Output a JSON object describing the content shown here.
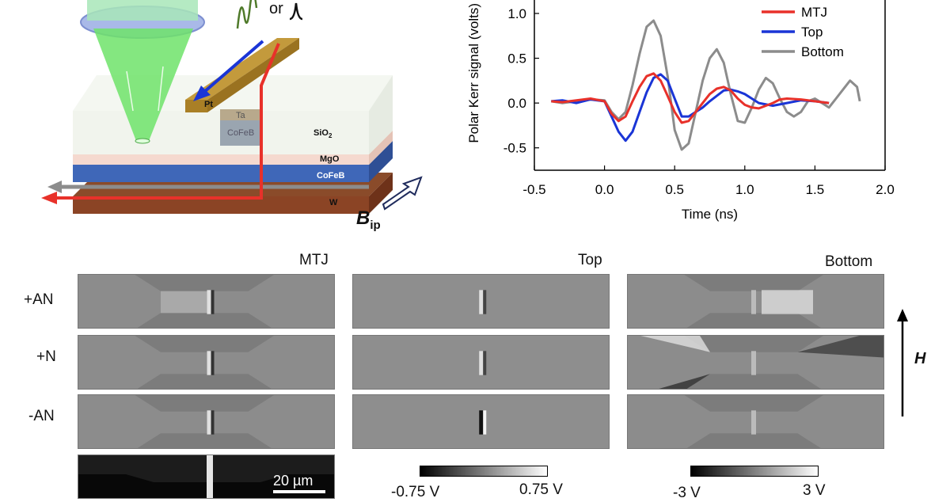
{
  "schematic": {
    "or_label": "or",
    "layers": {
      "pt": "Pt",
      "ta": "Ta",
      "cofeb_pillar": "CoFeB",
      "sio2": "SiO",
      "sio2_sub": "2",
      "mgo": "MgO",
      "cofeb": "CoFeB",
      "w": "W"
    },
    "field_label": "B",
    "field_sub": "ip",
    "colors": {
      "red": "#e8312a",
      "blue": "#1a35d6",
      "gray": "#8c8c8c",
      "green": "#7be37b"
    }
  },
  "chart_data": {
    "type": "line",
    "xlabel": "Time (ns)",
    "ylabel": "Polar Kerr signal (volts)",
    "xlim": [
      -0.5,
      2.0
    ],
    "ylim": [
      -0.75,
      1.15
    ],
    "xticks": [
      -0.5,
      0.0,
      0.5,
      1.0,
      1.5,
      2.0
    ],
    "xtick_labels": [
      "-0.5",
      "0.0",
      "0.5",
      "1.0",
      "1.5",
      "2.0"
    ],
    "yticks": [
      -0.5,
      0.0,
      0.5,
      1.0
    ],
    "ytick_labels": [
      "-0.5",
      "0.0",
      "0.5",
      "1.0"
    ],
    "legend_position": "top-right",
    "series": [
      {
        "name": "MTJ",
        "color": "#e8312a",
        "x": [
          -0.38,
          -0.3,
          -0.2,
          -0.1,
          0.0,
          0.05,
          0.1,
          0.15,
          0.2,
          0.25,
          0.3,
          0.35,
          0.4,
          0.45,
          0.5,
          0.55,
          0.6,
          0.65,
          0.7,
          0.75,
          0.8,
          0.85,
          0.9,
          0.95,
          1.0,
          1.05,
          1.1,
          1.15,
          1.2,
          1.25,
          1.3,
          1.4,
          1.5,
          1.6
        ],
        "y": [
          0.02,
          0.01,
          0.03,
          0.05,
          0.02,
          -0.12,
          -0.2,
          -0.15,
          0.02,
          0.18,
          0.3,
          0.33,
          0.25,
          0.08,
          -0.1,
          -0.22,
          -0.2,
          -0.1,
          0.0,
          0.1,
          0.16,
          0.18,
          0.14,
          0.05,
          -0.02,
          -0.05,
          -0.06,
          -0.03,
          0.0,
          0.04,
          0.05,
          0.04,
          0.02,
          0.0
        ]
      },
      {
        "name": "Top",
        "color": "#1a35d6",
        "x": [
          -0.38,
          -0.3,
          -0.2,
          -0.1,
          0.0,
          0.05,
          0.1,
          0.15,
          0.2,
          0.25,
          0.3,
          0.35,
          0.4,
          0.45,
          0.5,
          0.55,
          0.6,
          0.65,
          0.7,
          0.75,
          0.8,
          0.85,
          0.9,
          0.95,
          1.0,
          1.05,
          1.1,
          1.2,
          1.3,
          1.4,
          1.5,
          1.6
        ],
        "y": [
          0.02,
          0.03,
          0.0,
          0.04,
          0.02,
          -0.15,
          -0.32,
          -0.42,
          -0.32,
          -0.1,
          0.12,
          0.28,
          0.32,
          0.25,
          0.05,
          -0.15,
          -0.15,
          -0.1,
          -0.05,
          0.02,
          0.08,
          0.14,
          0.15,
          0.13,
          0.1,
          0.05,
          0.0,
          -0.03,
          0.0,
          0.03,
          0.02,
          0.0
        ]
      },
      {
        "name": "Bottom",
        "color": "#8c8c8c",
        "x": [
          -0.38,
          -0.3,
          -0.2,
          -0.1,
          0.0,
          0.05,
          0.1,
          0.15,
          0.2,
          0.25,
          0.3,
          0.35,
          0.4,
          0.45,
          0.5,
          0.55,
          0.6,
          0.65,
          0.7,
          0.75,
          0.8,
          0.85,
          0.9,
          0.95,
          1.0,
          1.05,
          1.1,
          1.15,
          1.2,
          1.25,
          1.3,
          1.35,
          1.4,
          1.45,
          1.5,
          1.55,
          1.6,
          1.65,
          1.7,
          1.75,
          1.8,
          1.82
        ],
        "y": [
          0.02,
          0.0,
          0.02,
          0.04,
          0.03,
          -0.1,
          -0.18,
          -0.1,
          0.2,
          0.55,
          0.85,
          0.92,
          0.75,
          0.3,
          -0.3,
          -0.52,
          -0.45,
          -0.1,
          0.25,
          0.5,
          0.6,
          0.45,
          0.1,
          -0.2,
          -0.22,
          -0.05,
          0.15,
          0.28,
          0.22,
          0.05,
          -0.1,
          -0.15,
          -0.1,
          0.02,
          0.05,
          0.0,
          -0.05,
          0.05,
          0.15,
          0.25,
          0.18,
          0.02
        ]
      }
    ]
  },
  "images": {
    "columns": [
      {
        "title": "MTJ"
      },
      {
        "title": "Top"
      },
      {
        "title": "Bottom"
      }
    ],
    "rows": [
      "+AN",
      "+N",
      "-AN"
    ],
    "scalebar": "20 µm",
    "colorbars": [
      {
        "min": "-0.75 V",
        "max": "0.75 V"
      },
      {
        "min": "-3 V",
        "max": "3 V"
      }
    ],
    "field_axis": "H"
  }
}
